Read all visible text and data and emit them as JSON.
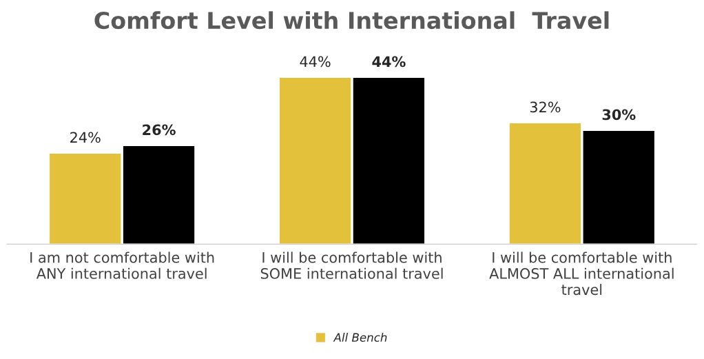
{
  "chart_data": {
    "type": "bar",
    "title": "Comfort Level with International  Travel",
    "categories": [
      "I am not comfortable with\nANY international travel",
      "I will be comfortable with\nSOME international travel",
      "I will be comfortable with\nALMOST ALL international\ntravel"
    ],
    "series": [
      {
        "name": "All Bench",
        "color": "#e3c13b",
        "values": [
          24,
          44,
          32
        ],
        "value_labels": [
          "24%",
          "44%",
          "32%"
        ]
      },
      {
        "color": "#000000",
        "values": [
          26,
          44,
          30
        ],
        "value_labels": [
          "26%",
          "44%",
          "30%"
        ]
      }
    ],
    "legend": "bottom",
    "grid": false
  }
}
